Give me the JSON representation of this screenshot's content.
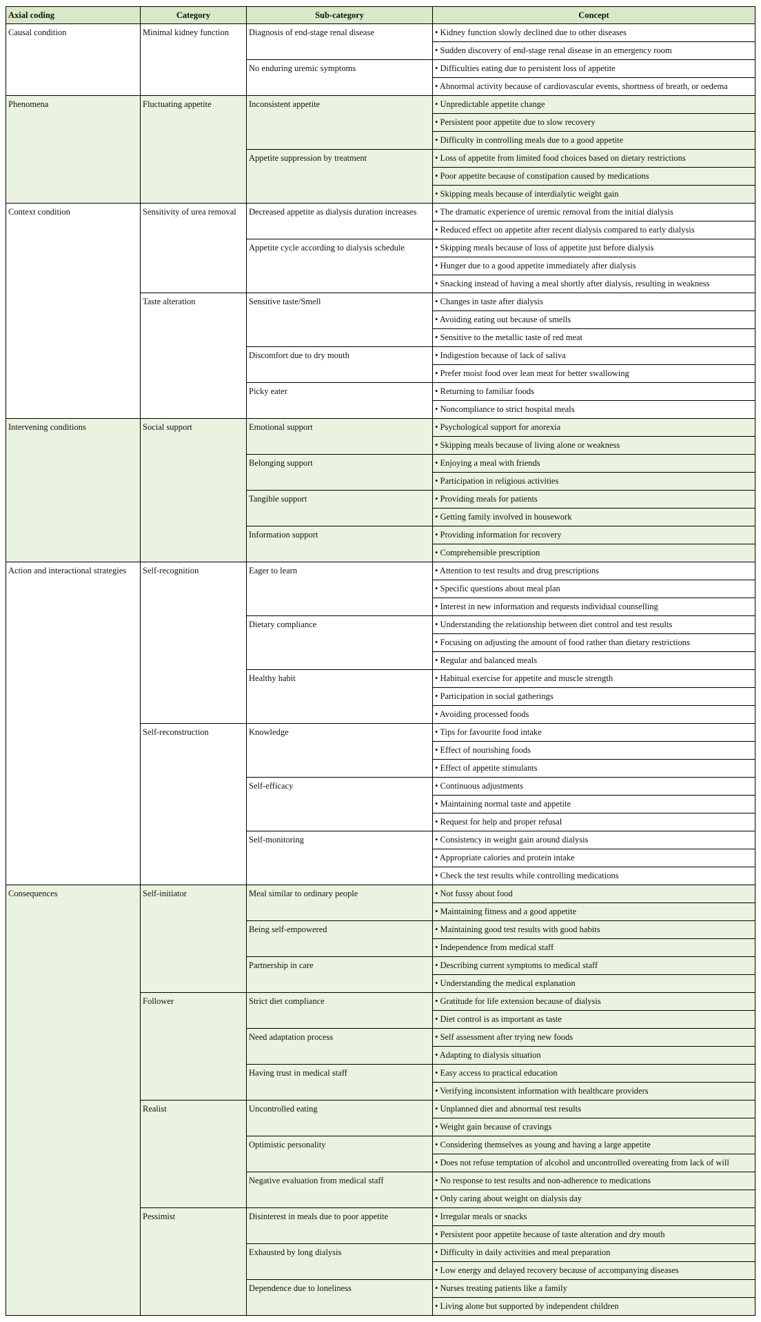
{
  "header": {
    "axial": "Axial coding",
    "category": "Category",
    "subcategory": "Sub-category",
    "concept": "Concept"
  },
  "colors": {
    "header_bg": "#d9e8c6",
    "band_bg": "#eaf3df",
    "border": "#000000"
  },
  "groups": [
    {
      "axial": "Causal condition",
      "band": false,
      "categories": [
        {
          "name": "Minimal kidney function",
          "subcategories": [
            {
              "name": "Diagnosis of end-stage renal disease",
              "concepts": [
                "• Kidney function slowly declined due to other diseases",
                "• Sudden discovery of end-stage renal disease in an emergency room"
              ]
            },
            {
              "name": "No enduring uremic symptoms",
              "concepts": [
                "• Difficulties eating due to persistent loss of appetite",
                "• Abnormal activity because of cardiovascular events, shortness of breath, or oedema"
              ]
            }
          ]
        }
      ]
    },
    {
      "axial": "Phenomena",
      "band": true,
      "categories": [
        {
          "name": "Fluctuating appetite",
          "subcategories": [
            {
              "name": "Inconsistent appetite",
              "concepts": [
                "• Unpredictable appetite change",
                "• Persistent poor appetite due to slow recovery",
                "• Difficulty in controlling meals due to a good appetite"
              ]
            },
            {
              "name": "Appetite suppression by treatment",
              "concepts": [
                "• Loss of appetite from limited food choices based on dietary restrictions",
                "• Poor appetite because of constipation caused by medications",
                "• Skipping meals because of interdialytic weight gain"
              ]
            }
          ]
        }
      ]
    },
    {
      "axial": "Context condition",
      "band": false,
      "categories": [
        {
          "name": "Sensitivity of urea removal",
          "subcategories": [
            {
              "name": "Decreased appetite as dialysis duration increases",
              "concepts": [
                "• The dramatic experience of uremic removal from the initial dialysis",
                "• Reduced effect on appetite after recent dialysis compared to early dialysis"
              ]
            },
            {
              "name": "Appetite cycle according to dialysis schedule",
              "concepts": [
                "• Skipping meals because of loss of appetite just before dialysis",
                "• Hunger due to a good appetite immediately after dialysis",
                "• Snacking instead of having a meal shortly after dialysis, resulting in weakness"
              ]
            }
          ]
        },
        {
          "name": "Taste alteration",
          "subcategories": [
            {
              "name": "Sensitive taste/Smell",
              "concepts": [
                "• Changes in taste after dialysis",
                "• Avoiding eating out because of smells",
                "• Sensitive to the metallic taste of red meat"
              ]
            },
            {
              "name": "Discomfort due to dry mouth",
              "concepts": [
                "• Indigestion because of lack of saliva",
                "• Prefer moist food over lean meat for better swallowing"
              ]
            },
            {
              "name": "Picky eater",
              "concepts": [
                "• Returning to familiar foods",
                "• Noncompliance to strict hospital meals"
              ]
            }
          ]
        }
      ]
    },
    {
      "axial": "Intervening conditions",
      "band": true,
      "categories": [
        {
          "name": "Social support",
          "subcategories": [
            {
              "name": "Emotional support",
              "concepts": [
                "• Psychological support for anorexia",
                "• Skipping meals because of living alone or weakness"
              ]
            },
            {
              "name": "Belonging support",
              "concepts": [
                "• Enjoying a meal with friends",
                "• Participation in religious activities"
              ]
            },
            {
              "name": "Tangible support",
              "concepts": [
                "• Providing meals for patients",
                "• Getting family involved in housework"
              ]
            },
            {
              "name": "Information support",
              "concepts": [
                "• Providing information for recovery",
                "• Comprehensible prescription"
              ]
            }
          ]
        }
      ]
    },
    {
      "axial": "Action and interactional strategies",
      "band": false,
      "categories": [
        {
          "name": "Self-recognition",
          "subcategories": [
            {
              "name": "Eager to learn",
              "concepts": [
                "• Attention to test results and drug prescriptions",
                "• Specific questions about meal plan",
                "• Interest in new information and requests individual counselling"
              ]
            },
            {
              "name": "Dietary compliance",
              "concepts": [
                "• Understanding the relationship between diet control and test results",
                "• Focusing on adjusting the amount of food rather than dietary restrictions",
                "• Regular and balanced meals"
              ]
            },
            {
              "name": "Healthy habit",
              "concepts": [
                "• Habitual exercise for appetite and muscle strength",
                "• Participation in social gatherings",
                "• Avoiding processed foods"
              ]
            }
          ]
        },
        {
          "name": "Self-reconstruction",
          "subcategories": [
            {
              "name": "Knowledge",
              "concepts": [
                "• Tips for favourite food intake",
                "• Effect of nourishing foods",
                "• Effect of appetite stimulants"
              ]
            },
            {
              "name": "Self-efficacy",
              "concepts": [
                "• Continuous adjustments",
                "• Maintaining normal taste and appetite",
                "• Request for help and proper refusal"
              ]
            },
            {
              "name": "Self-monitoring",
              "concepts": [
                "• Consistency in weight gain around dialysis",
                "• Appropriate calories and protein intake",
                "• Check the test results while controlling medications"
              ]
            }
          ]
        }
      ]
    },
    {
      "axial": "Consequences",
      "band": true,
      "categories": [
        {
          "name": "Self-initiator",
          "subcategories": [
            {
              "name": "Meal similar to ordinary people",
              "concepts": [
                "• Not fussy about food",
                "• Maintaining fitness and a good appetite"
              ]
            },
            {
              "name": "Being self-empowered",
              "concepts": [
                "• Maintaining good test results with good habits",
                "• Independence from medical staff"
              ]
            },
            {
              "name": "Partnership in care",
              "concepts": [
                "• Describing current symptoms to medical staff",
                "• Understanding the medical explanation"
              ]
            }
          ]
        },
        {
          "name": "Follower",
          "subcategories": [
            {
              "name": "Strict diet compliance",
              "concepts": [
                "• Gratitude for life extension because of dialysis",
                "• Diet control is as important as taste"
              ]
            },
            {
              "name": "Need adaptation process",
              "concepts": [
                "• Self assessment after trying new foods",
                "• Adapting to dialysis situation"
              ]
            },
            {
              "name": "Having trust in medical staff",
              "concepts": [
                "• Easy access to practical education",
                "• Verifying inconsistent information with healthcare providers"
              ]
            }
          ]
        },
        {
          "name": "Realist",
          "subcategories": [
            {
              "name": "Uncontrolled eating",
              "concepts": [
                "• Unplanned diet and abnormal test results",
                "• Weight gain because of cravings"
              ]
            },
            {
              "name": "Optimistic personality",
              "concepts": [
                "• Considering themselves as young and having a large appetite",
                "• Does not refuse temptation of alcohol and uncontrolled overeating from lack of will"
              ]
            },
            {
              "name": "Negative evaluation from medical staff",
              "concepts": [
                "• No response to test results and non-adherence to medications",
                "• Only caring about weight on dialysis day"
              ]
            }
          ]
        },
        {
          "name": "Pessimist",
          "subcategories": [
            {
              "name": "Disinterest in meals due to poor appetite",
              "concepts": [
                "• Irregular meals or snacks",
                "• Persistent poor appetite because of taste alteration and dry mouth"
              ]
            },
            {
              "name": "Exhausted by long dialysis",
              "concepts": [
                "• Difficulty in daily activities and meal preparation",
                "• Low energy and delayed recovery because of accompanying diseases"
              ]
            },
            {
              "name": "Dependence due to loneliness",
              "concepts": [
                "• Nurses treating patients like a family",
                "• Living alone but supported by independent children"
              ]
            }
          ]
        }
      ]
    }
  ]
}
